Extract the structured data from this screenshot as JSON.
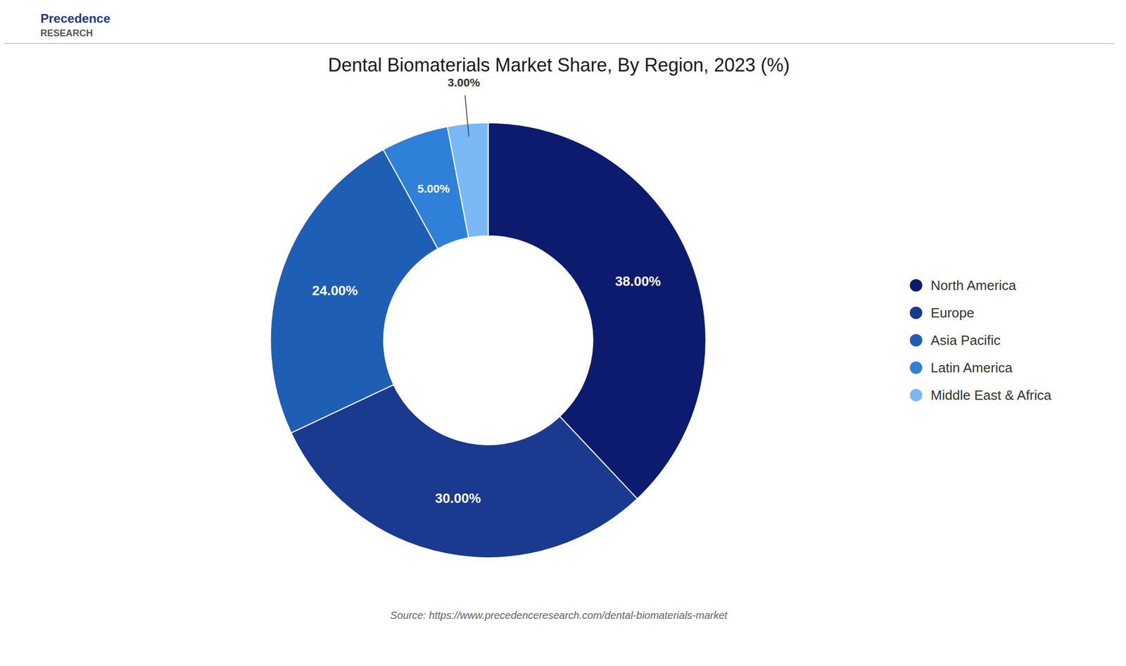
{
  "chart_data": {
    "type": "pie",
    "title": "Dental Biomaterials Market Share, By Region, 2023 (%)",
    "categories": [
      "North America",
      "Europe",
      "Asia Pacific",
      "Latin America",
      "Middle East & Africa"
    ],
    "values": [
      38.0,
      30.0,
      24.0,
      5.0,
      3.0
    ],
    "value_labels": [
      "38.00%",
      "30.00%",
      "24.00%",
      "5.00%",
      "3.00%"
    ],
    "colors": [
      "#0d1b6e",
      "#1a3a8f",
      "#1e5eb5",
      "#2e80d8",
      "#7ab8f5"
    ],
    "data_labels": true,
    "legend": "right",
    "annotations": [
      "Precedence",
      "RESEARCH",
      "Source: https://www.precedenceresearch.com/dental-biomaterials-market"
    ]
  }
}
